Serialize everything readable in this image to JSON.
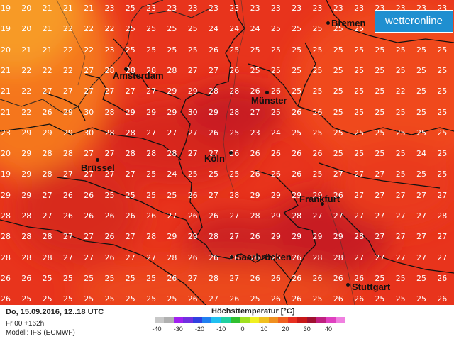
{
  "brand": {
    "logo": "wetteronline"
  },
  "grid": {
    "rows": [
      [
        "19",
        "20",
        "21",
        "21",
        "21",
        "23",
        "25",
        "23",
        "23",
        "23",
        "23",
        "23",
        "23",
        "23",
        "23",
        "23",
        "23",
        "23",
        "23",
        "23",
        "23",
        "23"
      ],
      [
        "19",
        "20",
        "21",
        "22",
        "22",
        "22",
        "25",
        "25",
        "25",
        "25",
        "24",
        "24",
        "24",
        "25",
        "25",
        "25",
        "25",
        "25",
        "25",
        "25",
        "25",
        "25"
      ],
      [
        "20",
        "21",
        "21",
        "22",
        "22",
        "23",
        "25",
        "25",
        "25",
        "25",
        "26",
        "25",
        "25",
        "25",
        "25",
        "25",
        "25",
        "25",
        "25",
        "25",
        "25",
        "25"
      ],
      [
        "21",
        "22",
        "22",
        "22",
        "27",
        "28",
        "28",
        "28",
        "28",
        "27",
        "27",
        "26",
        "25",
        "25",
        "25",
        "25",
        "25",
        "25",
        "25",
        "25",
        "25",
        "25"
      ],
      [
        "21",
        "22",
        "27",
        "27",
        "27",
        "27",
        "27",
        "27",
        "29",
        "29",
        "28",
        "28",
        "26",
        "26",
        "25",
        "25",
        "25",
        "25",
        "25",
        "22",
        "25",
        "25"
      ],
      [
        "21",
        "22",
        "26",
        "29",
        "30",
        "28",
        "29",
        "29",
        "29",
        "30",
        "29",
        "28",
        "27",
        "25",
        "26",
        "26",
        "25",
        "25",
        "25",
        "25",
        "25",
        "25"
      ],
      [
        "23",
        "29",
        "29",
        "29",
        "30",
        "28",
        "28",
        "27",
        "27",
        "27",
        "26",
        "25",
        "23",
        "24",
        "25",
        "25",
        "25",
        "25",
        "25",
        "25",
        "25",
        "25"
      ],
      [
        "20",
        "29",
        "28",
        "28",
        "27",
        "27",
        "28",
        "28",
        "28",
        "27",
        "27",
        "26",
        "26",
        "26",
        "26",
        "26",
        "25",
        "25",
        "25",
        "25",
        "24",
        "25"
      ],
      [
        "19",
        "29",
        "28",
        "27",
        "27",
        "27",
        "27",
        "25",
        "24",
        "25",
        "25",
        "25",
        "26",
        "26",
        "26",
        "25",
        "27",
        "27",
        "27",
        "25",
        "25",
        "25"
      ],
      [
        "29",
        "29",
        "27",
        "26",
        "26",
        "25",
        "25",
        "25",
        "25",
        "26",
        "27",
        "28",
        "29",
        "29",
        "29",
        "29",
        "26",
        "27",
        "27",
        "27",
        "27",
        "27"
      ],
      [
        "28",
        "28",
        "27",
        "26",
        "26",
        "26",
        "26",
        "26",
        "27",
        "26",
        "26",
        "27",
        "28",
        "29",
        "28",
        "27",
        "27",
        "27",
        "27",
        "27",
        "27",
        "28"
      ],
      [
        "28",
        "28",
        "28",
        "27",
        "27",
        "26",
        "27",
        "28",
        "29",
        "29",
        "28",
        "27",
        "26",
        "29",
        "29",
        "29",
        "29",
        "28",
        "27",
        "27",
        "27",
        "27"
      ],
      [
        "28",
        "28",
        "28",
        "27",
        "27",
        "26",
        "27",
        "27",
        "28",
        "26",
        "26",
        "26",
        "26",
        "26",
        "26",
        "28",
        "28",
        "27",
        "27",
        "27",
        "27",
        "27"
      ],
      [
        "26",
        "26",
        "25",
        "25",
        "25",
        "25",
        "25",
        "25",
        "26",
        "27",
        "28",
        "27",
        "26",
        "26",
        "26",
        "26",
        "26",
        "26",
        "25",
        "25",
        "25",
        "26"
      ],
      [
        "26",
        "25",
        "25",
        "25",
        "25",
        "25",
        "25",
        "25",
        "25",
        "26",
        "27",
        "26",
        "25",
        "26",
        "26",
        "25",
        "26",
        "26",
        "25",
        "25",
        "25",
        "26"
      ]
    ]
  },
  "cities": [
    {
      "name": "Bremen"
    },
    {
      "name": "Amsterdam"
    },
    {
      "name": "Münster"
    },
    {
      "name": "Köln"
    },
    {
      "name": "Brüssel"
    },
    {
      "name": "Frankfurt"
    },
    {
      "name": "Saarbrücken"
    },
    {
      "name": "Stuttgart"
    }
  ],
  "footer": {
    "date": "Do, 15.09.2016, 12..18 UTC",
    "run": "Fr 00 +162h",
    "model": "Modell: IFS (ECMWF)"
  },
  "legend": {
    "title": "Höchsttemperatur [°C]",
    "ticks": [
      "-40",
      "-30",
      "-20",
      "-10",
      "0",
      "10",
      "20",
      "30",
      "40"
    ],
    "colors": [
      "#c8c8c8",
      "#b0b0b0",
      "#a020f0",
      "#7030e0",
      "#3040e0",
      "#2080f0",
      "#20c0f0",
      "#20d0a0",
      "#30c030",
      "#a0e020",
      "#f0f020",
      "#f0c020",
      "#f09020",
      "#f06020",
      "#e83020",
      "#c81818",
      "#a01030",
      "#c02080",
      "#e040c0",
      "#f080e0"
    ]
  }
}
